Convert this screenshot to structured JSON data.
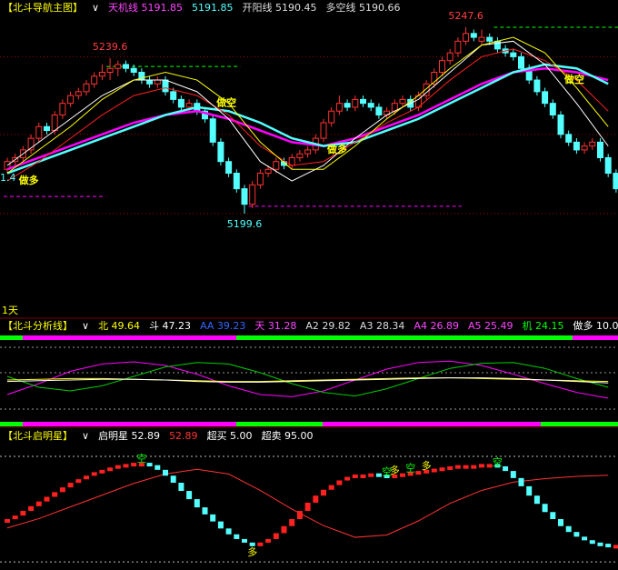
{
  "main": {
    "header": [
      {
        "text": "【北斗导航主图】",
        "color": "#ffff00"
      },
      {
        "text": "∨",
        "color": "#ffffff"
      },
      {
        "text": "天机线 5191.85",
        "color": "#ff44ff"
      },
      {
        "text": "5191.85",
        "color": "#54ffff"
      },
      {
        "text": "开阳线 5190.45",
        "color": "#dddddd"
      },
      {
        "text": "多空线 5190.66",
        "color": "#dddddd"
      }
    ],
    "ylim": [
      5175,
      5250.4
    ],
    "grid_levels": [
      5240,
      5220,
      5199.6
    ],
    "up_color": "#ff3232",
    "down_color": "#54ffff",
    "candles": [
      [
        5211,
        5214,
        5210,
        5213
      ],
      [
        5213,
        5215,
        5212,
        5214
      ],
      [
        5214,
        5217,
        5213,
        5216
      ],
      [
        5216,
        5220,
        5215,
        5219
      ],
      [
        5219,
        5223,
        5218,
        5222
      ],
      [
        5222,
        5223,
        5220,
        5221
      ],
      [
        5221,
        5226,
        5220,
        5225
      ],
      [
        5225,
        5229,
        5224,
        5228
      ],
      [
        5228,
        5231,
        5227,
        5230
      ],
      [
        5230,
        5232,
        5229,
        5231
      ],
      [
        5231,
        5234,
        5230,
        5233
      ],
      [
        5233,
        5236,
        5232,
        5235
      ],
      [
        5235,
        5238,
        5234,
        5236
      ],
      [
        5236,
        5239.6,
        5234,
        5237
      ],
      [
        5237,
        5239,
        5235,
        5238
      ],
      [
        5238,
        5239,
        5236,
        5237
      ],
      [
        5237,
        5238,
        5235,
        5236
      ],
      [
        5236,
        5237,
        5233,
        5234
      ],
      [
        5234,
        5235,
        5232,
        5233
      ],
      [
        5233,
        5235,
        5232,
        5234
      ],
      [
        5234,
        5235,
        5230,
        5231
      ],
      [
        5231,
        5232,
        5228,
        5229
      ],
      [
        5229,
        5230,
        5226,
        5227
      ],
      [
        5227,
        5229,
        5226,
        5228
      ],
      [
        5228,
        5229,
        5225,
        5226
      ],
      [
        5226,
        5227,
        5223,
        5224
      ],
      [
        5224,
        5225,
        5217,
        5218
      ],
      [
        5218,
        5219,
        5212,
        5213
      ],
      [
        5213,
        5214,
        5209,
        5210
      ],
      [
        5210,
        5211,
        5205,
        5206
      ],
      [
        5206,
        5207,
        5199.6,
        5202
      ],
      [
        5202,
        5208,
        5201,
        5207
      ],
      [
        5207,
        5211,
        5206,
        5210
      ],
      [
        5210,
        5212,
        5209,
        5211
      ],
      [
        5211,
        5214,
        5210,
        5213
      ],
      [
        5213,
        5214,
        5211,
        5212
      ],
      [
        5212,
        5215,
        5211,
        5214
      ],
      [
        5214,
        5216,
        5213,
        5215
      ],
      [
        5215,
        5217,
        5214,
        5216
      ],
      [
        5216,
        5220,
        5215,
        5219
      ],
      [
        5219,
        5224,
        5218,
        5223
      ],
      [
        5223,
        5227,
        5222,
        5226
      ],
      [
        5226,
        5230,
        5225,
        5228
      ],
      [
        5228,
        5229,
        5226,
        5227
      ],
      [
        5227,
        5230,
        5226,
        5229
      ],
      [
        5229,
        5230,
        5227,
        5228
      ],
      [
        5228,
        5229,
        5226,
        5227
      ],
      [
        5227,
        5228,
        5224,
        5225
      ],
      [
        5225,
        5227,
        5224,
        5226
      ],
      [
        5226,
        5229,
        5225,
        5228
      ],
      [
        5228,
        5230,
        5227,
        5229
      ],
      [
        5229,
        5230,
        5226,
        5227
      ],
      [
        5227,
        5231,
        5226,
        5230
      ],
      [
        5230,
        5234,
        5229,
        5233
      ],
      [
        5233,
        5237,
        5232,
        5236
      ],
      [
        5236,
        5240,
        5235,
        5239
      ],
      [
        5239,
        5242,
        5238,
        5241
      ],
      [
        5241,
        5245,
        5240,
        5244
      ],
      [
        5244,
        5247.6,
        5243,
        5246
      ],
      [
        5246,
        5247,
        5244,
        5245
      ],
      [
        5244,
        5247,
        5243,
        5245
      ],
      [
        5245,
        5246,
        5243,
        5244
      ],
      [
        5244,
        5245,
        5241,
        5242
      ],
      [
        5242,
        5243,
        5240,
        5241
      ],
      [
        5241,
        5242,
        5239,
        5240
      ],
      [
        5240,
        5241,
        5236,
        5237
      ],
      [
        5237,
        5238,
        5233,
        5234
      ],
      [
        5234,
        5235,
        5230,
        5231
      ],
      [
        5231,
        5232,
        5227,
        5228
      ],
      [
        5228,
        5229,
        5224,
        5225
      ],
      [
        5225,
        5226,
        5219,
        5220
      ],
      [
        5220,
        5221,
        5217,
        5218
      ],
      [
        5218,
        5219,
        5215,
        5216
      ],
      [
        5216,
        5218,
        5215,
        5217
      ],
      [
        5217,
        5219,
        5216,
        5218
      ],
      [
        5218,
        5219,
        5213,
        5214
      ],
      [
        5214,
        5215,
        5209,
        5210
      ],
      [
        5210,
        5211,
        5205,
        5206
      ]
    ],
    "lines": {
      "x": [
        0,
        4,
        8,
        12,
        16,
        20,
        24,
        28,
        32,
        36,
        40,
        44,
        48,
        52,
        56,
        60,
        64,
        68,
        72,
        76
      ],
      "series": [
        {
          "color": "#ff00ff",
          "width": 2.5,
          "values": [
            5211,
            5214,
            5217,
            5220,
            5223,
            5225,
            5226,
            5224,
            5221,
            5218,
            5217,
            5219,
            5222,
            5225,
            5229,
            5233,
            5236,
            5237,
            5236,
            5234
          ]
        },
        {
          "color": "#54ffff",
          "width": 2.5,
          "values": [
            5210,
            5213,
            5216,
            5219,
            5222,
            5225,
            5227,
            5226,
            5223,
            5219,
            5217,
            5218,
            5221,
            5224,
            5228,
            5232,
            5236,
            5238,
            5237,
            5233
          ]
        },
        {
          "color": "#ff2020",
          "width": 1,
          "values": [
            5208,
            5213,
            5219,
            5225,
            5230,
            5232,
            5230,
            5225,
            5217,
            5212,
            5213,
            5218,
            5223,
            5227,
            5234,
            5240,
            5242,
            5239,
            5234,
            5226
          ]
        },
        {
          "color": "#ffffff",
          "width": 1,
          "values": [
            5212,
            5218,
            5224,
            5230,
            5234,
            5234,
            5231,
            5224,
            5213,
            5208,
            5212,
            5219,
            5225,
            5229,
            5236,
            5243,
            5244,
            5238,
            5228,
            5217
          ]
        },
        {
          "color": "#ffff00",
          "width": 1,
          "values": [
            5210,
            5216,
            5222,
            5229,
            5234,
            5236,
            5234,
            5228,
            5218,
            5211,
            5211,
            5217,
            5224,
            5230,
            5237,
            5243,
            5245,
            5241,
            5232,
            5222
          ]
        }
      ]
    },
    "levels": [
      {
        "value": 5204,
        "from": 0,
        "to": 12,
        "color": "#ff00ff"
      },
      {
        "value": 5201.5,
        "from": 31,
        "to": 57,
        "color": "#ff00ff"
      },
      {
        "value": 5237.5,
        "from": 13,
        "to": 29,
        "color": "#00ff00"
      },
      {
        "value": 5247.6,
        "from": 62,
        "to": 77,
        "color": "#00ff00"
      }
    ],
    "high_labels": [
      13,
      58
    ],
    "low_labels": [
      30
    ],
    "cut_label": "1.4",
    "signals": [
      {
        "label": "做多",
        "index": 1,
        "value": 5208
      },
      {
        "label": "做空",
        "index": 26,
        "value": 5228
      },
      {
        "label": "做多",
        "index": 40,
        "value": 5216
      },
      {
        "label": "做空",
        "index": 70,
        "value": 5234
      }
    ],
    "period": "1天"
  },
  "analysis": {
    "header": [
      {
        "text": "【北斗分析线】",
        "color": "#ffff00"
      },
      {
        "text": "∨",
        "color": "#ffffff"
      },
      {
        "text": "北 49.64",
        "color": "#ffff00"
      },
      {
        "text": "斗 47.23",
        "color": "#ffffff"
      },
      {
        "text": "AA 39.23",
        "color": "#3366ff"
      },
      {
        "text": "天 31.28",
        "color": "#ff44ff"
      },
      {
        "text": "A2 29.82",
        "color": "#dddddd"
      },
      {
        "text": "A3 28.34",
        "color": "#dddddd"
      },
      {
        "text": "A4 26.89",
        "color": "#ff44ff"
      },
      {
        "text": "A5 25.49",
        "color": "#ff44ff"
      },
      {
        "text": "机 24.15",
        "color": "#00ff00"
      },
      {
        "text": "做多 10.00",
        "color": "#ffffff"
      }
    ],
    "ylim": [
      0,
      100
    ],
    "dashed": [
      95,
      60,
      10
    ],
    "series": [
      {
        "color": "#ff00ff",
        "values": [
          30,
          45,
          62,
          72,
          75,
          70,
          58,
          42,
          30,
          27,
          35,
          50,
          65,
          74,
          76,
          70,
          58,
          45,
          33,
          25
        ]
      },
      {
        "color": "#00cc00",
        "values": [
          55,
          40,
          35,
          42,
          55,
          68,
          74,
          72,
          60,
          45,
          33,
          28,
          38,
          52,
          66,
          73,
          74,
          66,
          52,
          40
        ]
      },
      {
        "color": "#ffff00",
        "values": [
          50,
          51,
          52,
          52,
          51,
          50,
          49,
          48,
          48,
          49,
          50,
          51,
          52,
          53,
          53,
          52,
          51,
          50,
          49,
          48
        ]
      },
      {
        "color": "#ffffff",
        "values": [
          48,
          49,
          50,
          51,
          51,
          50,
          48,
          47,
          47,
          48,
          49,
          50,
          51,
          52,
          53,
          53,
          52,
          50,
          48,
          46
        ]
      }
    ]
  },
  "star": {
    "header": [
      {
        "text": "【北斗启明星】",
        "color": "#ffff00"
      },
      {
        "text": "∨",
        "color": "#ffffff"
      },
      {
        "text": "启明星 52.89",
        "color": "#ffffff"
      },
      {
        "text": "52.89",
        "color": "#ff3232"
      },
      {
        "text": "超买 5.00",
        "color": "#ffffff"
      },
      {
        "text": "超卖 95.00",
        "color": "#ffffff"
      }
    ],
    "ylim": [
      0,
      100
    ],
    "dashed": [
      5,
      95
    ],
    "values": [
      60,
      57,
      53,
      49,
      45,
      41,
      37,
      33,
      29,
      26,
      23,
      20,
      18,
      16,
      14,
      13,
      12,
      12,
      14,
      18,
      23,
      29,
      36,
      43,
      50,
      56,
      62,
      68,
      73,
      77,
      80,
      81,
      80,
      77,
      72,
      66,
      60,
      53,
      46,
      40,
      35,
      31,
      27,
      24,
      22,
      22,
      21,
      22,
      23,
      22,
      21,
      20,
      19,
      18,
      17,
      16,
      15,
      14,
      14,
      14,
      13,
      13,
      15,
      19,
      25,
      32,
      40,
      47,
      54,
      60,
      66,
      71,
      75,
      78,
      80,
      81,
      82,
      82
    ],
    "line": [
      66,
      58,
      48,
      38,
      28,
      20,
      16,
      20,
      34,
      50,
      64,
      74,
      72,
      60,
      45,
      34,
      27,
      24,
      22,
      21
    ],
    "signals": [
      {
        "label": "空",
        "index": 17,
        "color": "#00ff00"
      },
      {
        "label": "多",
        "index": 31,
        "color": "#ffff00"
      },
      {
        "label": "空",
        "index": 48,
        "color": "#00ff00"
      },
      {
        "label": "多",
        "index": 49,
        "color": "#ffff00"
      },
      {
        "label": "空",
        "index": 51,
        "color": "#00ff00"
      },
      {
        "label": "多",
        "index": 53,
        "color": "#ffff00"
      },
      {
        "label": "空",
        "index": 62,
        "color": "#00ff00"
      }
    ]
  }
}
